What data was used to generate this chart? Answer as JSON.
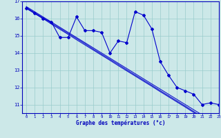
{
  "xlabel": "Graphe des températures (°c)",
  "x": [
    0,
    1,
    2,
    3,
    4,
    5,
    6,
    7,
    8,
    9,
    10,
    11,
    12,
    13,
    14,
    15,
    16,
    17,
    18,
    19,
    20,
    21,
    22,
    23
  ],
  "y_data": [
    16.6,
    16.3,
    16.0,
    15.8,
    14.9,
    14.9,
    16.1,
    15.3,
    15.3,
    15.2,
    14.0,
    14.7,
    14.6,
    16.4,
    16.2,
    15.4,
    13.5,
    12.7,
    12.0,
    11.8,
    11.6,
    11.0,
    11.1,
    11.0
  ],
  "y_reg1": [
    16.65,
    16.35,
    16.05,
    15.74,
    15.44,
    15.14,
    14.84,
    14.54,
    14.23,
    13.93,
    13.63,
    13.33,
    13.02,
    12.72,
    12.42,
    12.12,
    11.81,
    11.51,
    11.21,
    10.91,
    10.6,
    10.3,
    10.0,
    9.7
  ],
  "y_reg2": [
    16.7,
    16.4,
    16.1,
    15.8,
    15.5,
    15.2,
    14.9,
    14.6,
    14.3,
    14.0,
    13.7,
    13.4,
    13.1,
    12.8,
    12.5,
    12.2,
    11.9,
    11.6,
    11.3,
    11.0,
    10.7,
    10.4,
    10.1,
    9.8
  ],
  "y_reg3": [
    16.6,
    16.3,
    16.0,
    15.68,
    15.38,
    15.08,
    14.77,
    14.47,
    14.17,
    13.87,
    13.57,
    13.26,
    12.96,
    12.66,
    12.36,
    12.06,
    11.75,
    11.45,
    11.15,
    10.85,
    10.54,
    10.24,
    9.94,
    9.64
  ],
  "line_color": "#0000cc",
  "bg_color": "#cce8e8",
  "grid_color": "#99cccc",
  "axis_color": "#0000bb",
  "ylim": [
    10.5,
    17.0
  ],
  "xlim": [
    -0.5,
    23
  ],
  "yticks": [
    11,
    12,
    13,
    14,
    15,
    16,
    17
  ],
  "xticks": [
    0,
    1,
    2,
    3,
    4,
    5,
    6,
    7,
    8,
    9,
    10,
    11,
    12,
    13,
    14,
    15,
    16,
    17,
    18,
    19,
    20,
    21,
    22,
    23
  ]
}
